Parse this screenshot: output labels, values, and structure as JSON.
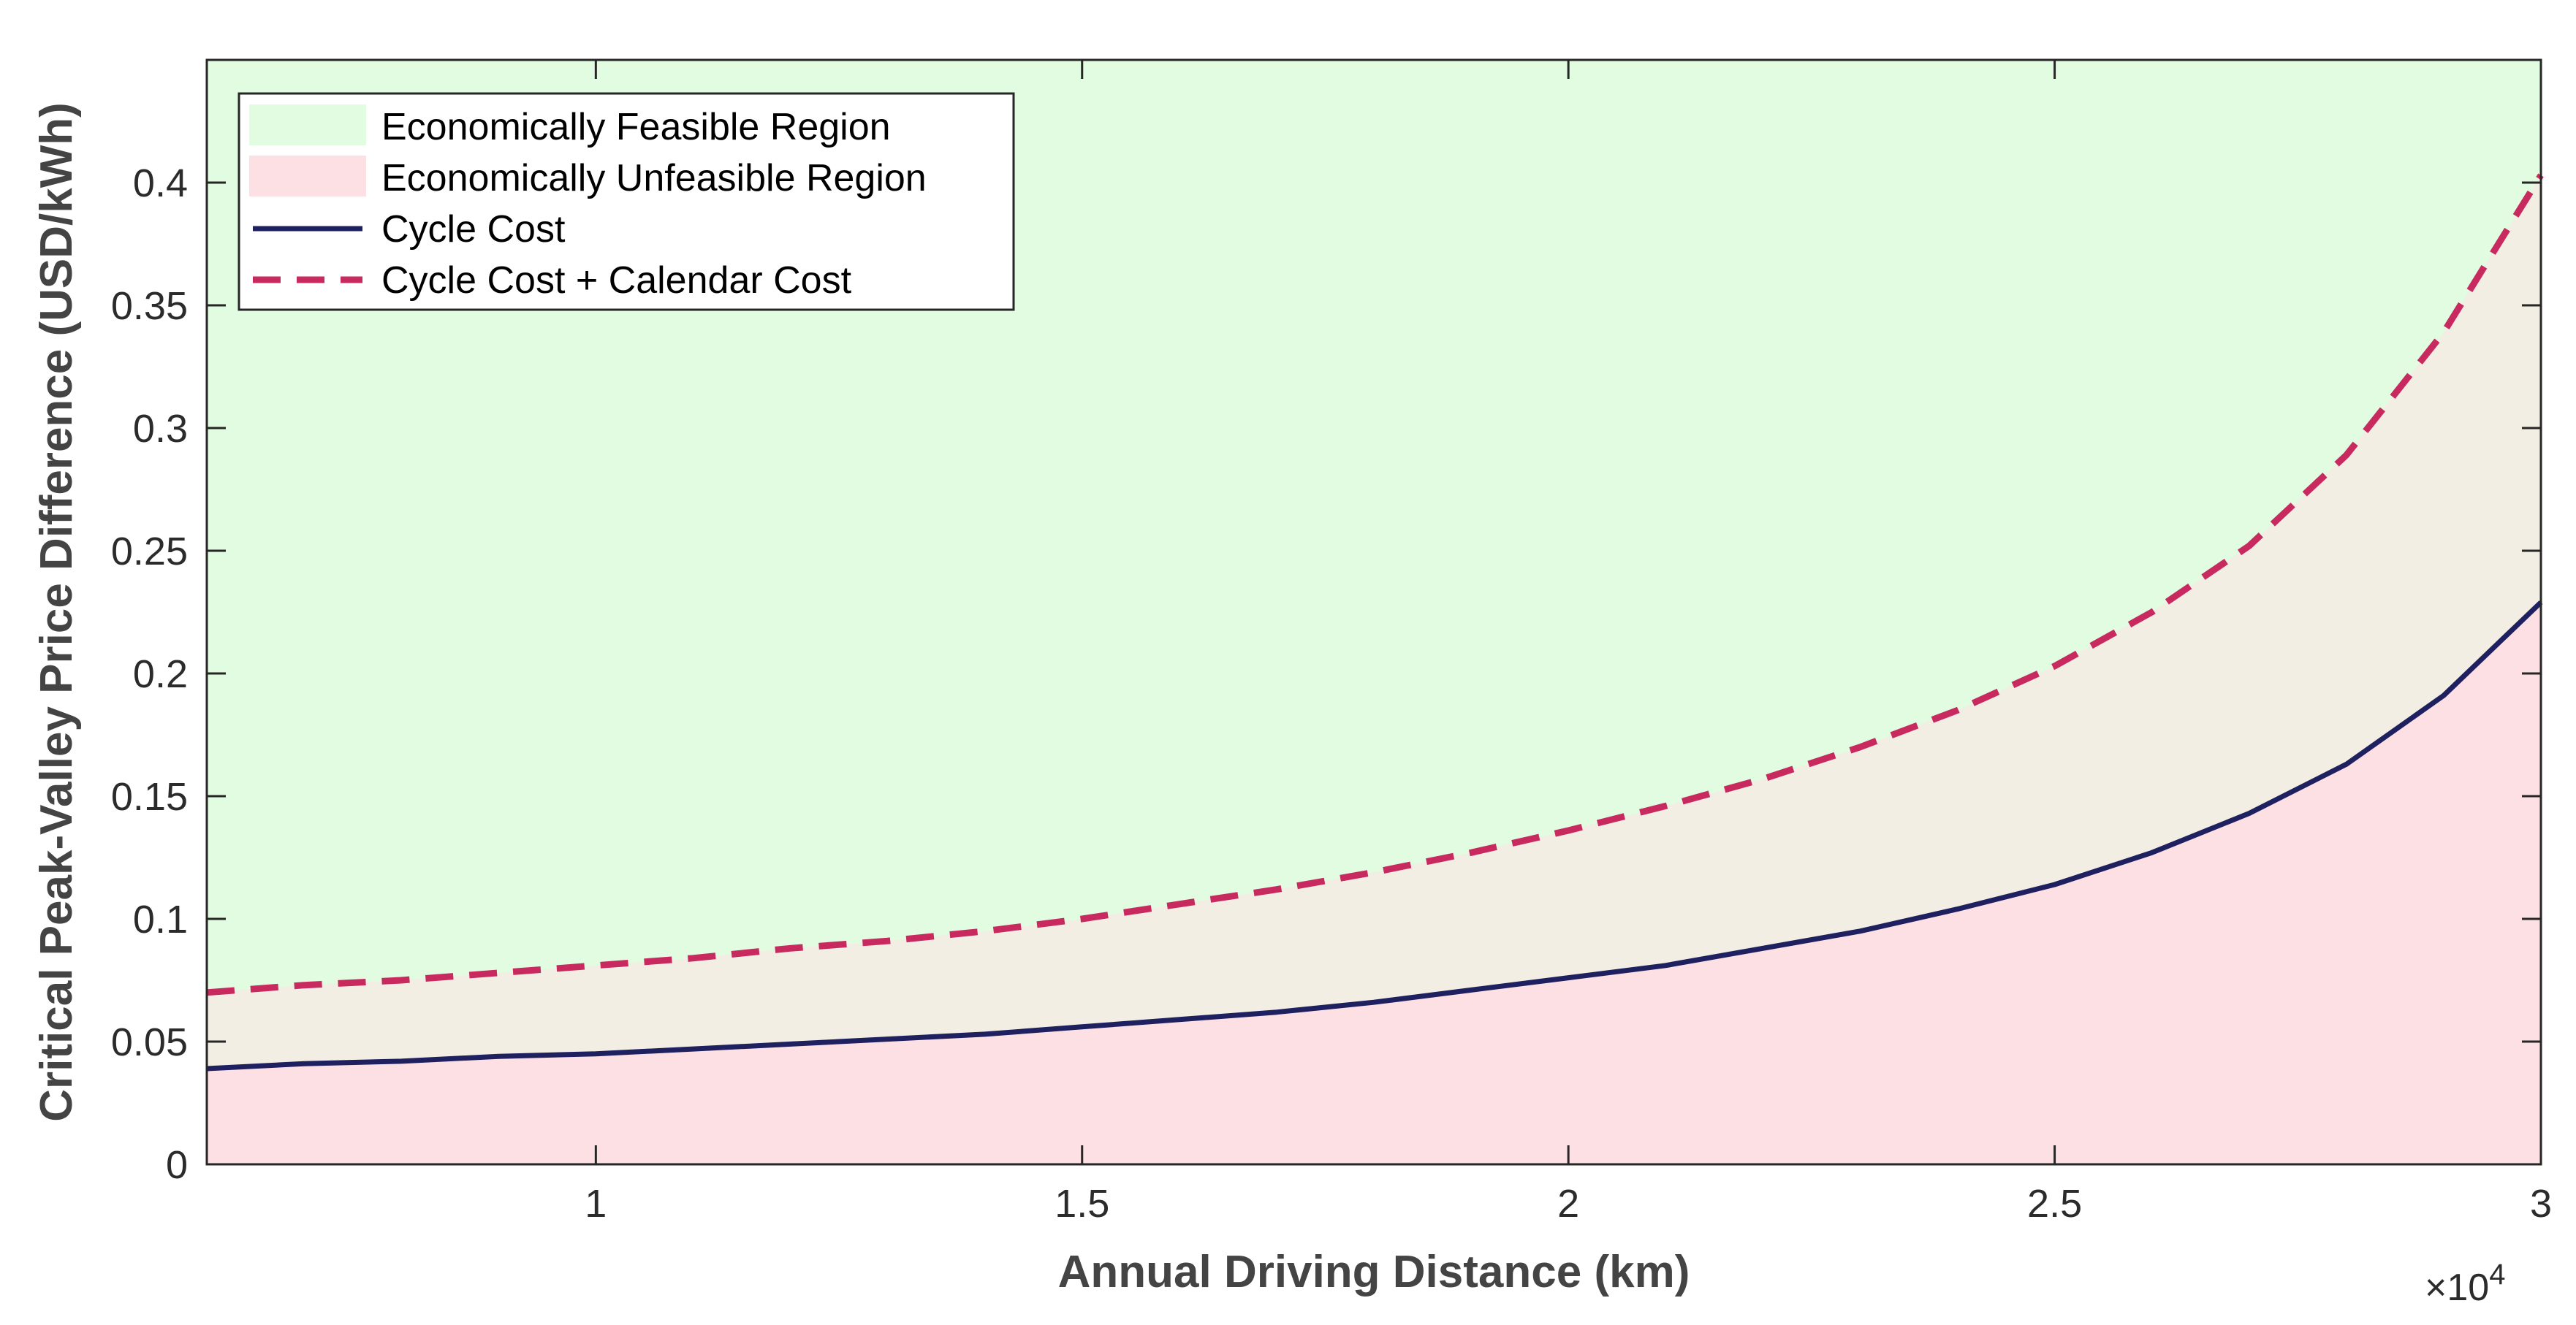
{
  "chart_data": {
    "type": "area",
    "title": "",
    "xlabel": "Annual Driving Distance (km)",
    "ylabel": "Critical Peak-Valley Price Difference (USD/kWh)",
    "x_exponent_label": "×10",
    "x_exponent_power": "4",
    "xlim": [
      6000,
      30000
    ],
    "ylim": [
      0,
      0.45
    ],
    "x_ticks": [
      10000,
      15000,
      20000,
      25000,
      30000
    ],
    "x_tick_labels": [
      "1",
      "1.5",
      "2",
      "2.5",
      "3"
    ],
    "y_ticks": [
      0,
      0.05,
      0.1,
      0.15,
      0.2,
      0.25,
      0.3,
      0.35,
      0.4
    ],
    "y_tick_labels": [
      "0",
      "0.05",
      "0.1",
      "0.15",
      "0.2",
      "0.25",
      "0.3",
      "0.35",
      "0.4"
    ],
    "grid": false,
    "legend_position": "top-left",
    "legend": [
      "Economically Feasible Region",
      "Economically Unfeasible Region",
      "Cycle Cost",
      "Cycle Cost + Calendar Cost"
    ],
    "x": [
      6000,
      7000,
      8000,
      9000,
      10000,
      11000,
      12000,
      13000,
      14000,
      15000,
      16000,
      17000,
      18000,
      19000,
      20000,
      21000,
      22000,
      23000,
      24000,
      25000,
      26000,
      27000,
      28000,
      29000,
      30000
    ],
    "series": [
      {
        "name": "Cycle Cost",
        "style": "solid",
        "color": "#1f2060",
        "values": [
          0.039,
          0.041,
          0.042,
          0.044,
          0.045,
          0.047,
          0.049,
          0.051,
          0.053,
          0.056,
          0.059,
          0.062,
          0.066,
          0.071,
          0.076,
          0.081,
          0.088,
          0.095,
          0.104,
          0.114,
          0.127,
          0.143,
          0.163,
          0.191,
          0.229
        ]
      },
      {
        "name": "Cycle Cost + Calendar Cost",
        "style": "dashed",
        "color": "#c8295f",
        "values": [
          0.07,
          0.073,
          0.075,
          0.078,
          0.081,
          0.084,
          0.088,
          0.091,
          0.095,
          0.1,
          0.106,
          0.112,
          0.119,
          0.127,
          0.136,
          0.146,
          0.157,
          0.17,
          0.185,
          0.203,
          0.225,
          0.252,
          0.289,
          0.339,
          0.403
        ]
      }
    ],
    "colors": {
      "feasible": "#e1fce0",
      "unfeasible": "#fde0e4",
      "between": "#f2eee4",
      "axis": "#262626",
      "cycle": "#1f2060",
      "calendar": "#c8295f"
    }
  }
}
